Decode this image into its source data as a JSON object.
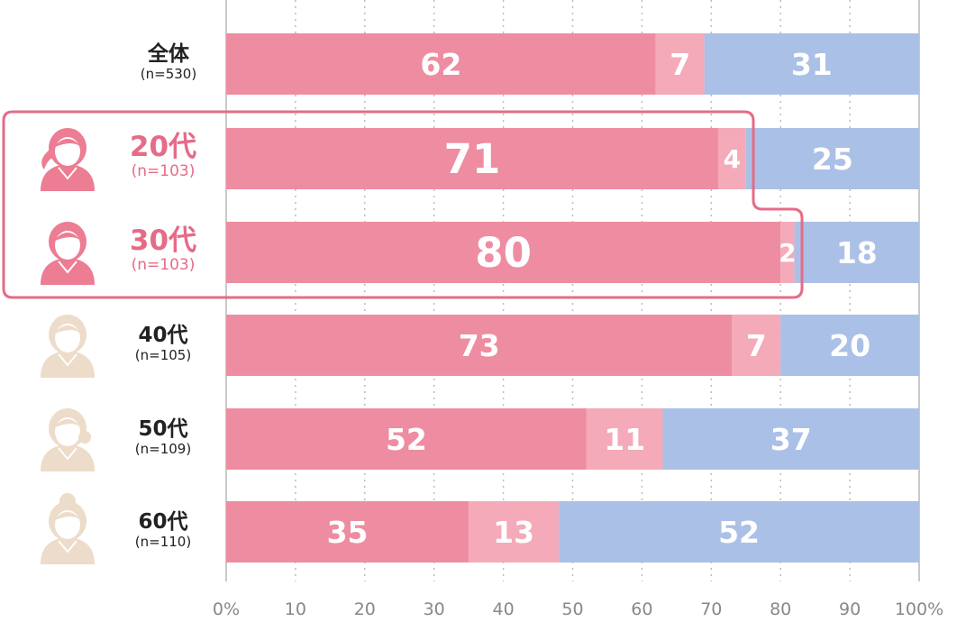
{
  "colors": {
    "yes": "#ee8da1",
    "middle": "#f4aab8",
    "no": "#abc0e6",
    "highlight": "#e66b87",
    "avatar_highlight": "#ec7d93",
    "avatar_muted": "#ecdcc9"
  },
  "chart_data": {
    "type": "bar",
    "orientation": "horizontal",
    "stacked": true,
    "categories": [
      "全体",
      "20代",
      "30代",
      "40代",
      "50代",
      "60代"
    ],
    "sample_sizes": [
      "(n=530)",
      "(n=103)",
      "(n=103)",
      "(n=105)",
      "(n=109)",
      "(n=110)"
    ],
    "highlighted": [
      false,
      true,
      true,
      false,
      false,
      false
    ],
    "avatars": [
      "",
      "woman-20s-icon",
      "woman-30s-icon",
      "woman-40s-icon",
      "woman-50s-icon",
      "woman-60s-icon"
    ],
    "series": [
      {
        "values": [
          62,
          71,
          80,
          73,
          52,
          35
        ]
      },
      {
        "values": [
          7,
          4,
          2,
          7,
          11,
          13
        ]
      },
      {
        "values": [
          31,
          25,
          18,
          20,
          37,
          52
        ]
      }
    ],
    "xlim": [
      0,
      100
    ],
    "xticks": [
      "0%",
      "10",
      "20",
      "30",
      "40",
      "50",
      "60",
      "70",
      "80",
      "90",
      "100%"
    ],
    "grid": true
  }
}
